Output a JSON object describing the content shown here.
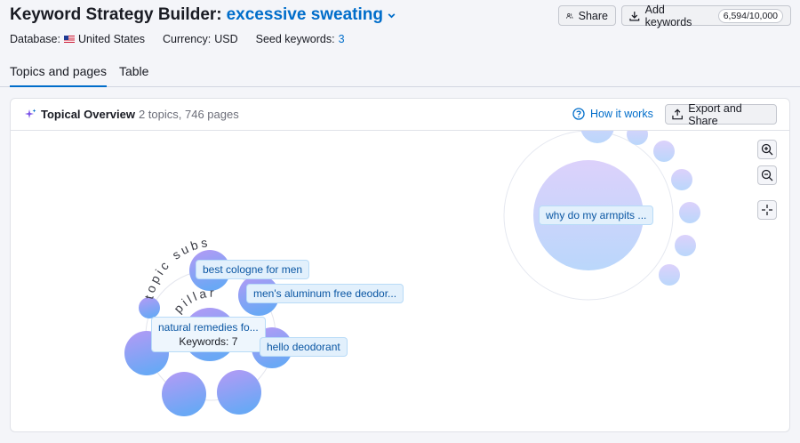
{
  "header": {
    "title_static": "Keyword Strategy Builder:",
    "title_keyword": "excessive sweating",
    "database_label": "Database:",
    "database_value": "United States",
    "currency_label": "Currency:",
    "currency_value": "USD",
    "seed_label": "Seed keywords:",
    "seed_value": "3",
    "share_label": "Share",
    "add_keywords_label": "Add keywords",
    "keywords_counter": "6,594/10,000"
  },
  "tabs": [
    {
      "label": "Topics and pages",
      "active": true
    },
    {
      "label": "Table",
      "active": false
    }
  ],
  "overview": {
    "title": "Topical Overview",
    "subtitle": "2 topics, 746 pages",
    "how_it_works": "How it works",
    "export_label": "Export and Share"
  },
  "graph": {
    "cluster_arc_label_1": "topic subs",
    "cluster_arc_label_2": "pillar",
    "labels": {
      "best_cologne": "best cologne for men",
      "aluminum_free": "men's aluminum free deodor...",
      "natural_remedies": "natural remedies fo...",
      "natural_keywords": "Keywords: 7",
      "hello_deodorant": "hello deodorant",
      "why_armpits": "why do my armpits ..."
    }
  },
  "colors": {
    "accent": "#006dca",
    "bubble_top": "#b59af5",
    "bubble_bottom": "#6aa8f5",
    "bubble_light_top": "#dcd1fb",
    "bubble_light_bottom": "#bad7fb"
  },
  "icons": {
    "sparkle": "sparkle-icon",
    "share": "share-users-icon",
    "download": "download-icon",
    "help": "question-circle-icon",
    "export": "export-icon",
    "zoom_in": "zoom-in-icon",
    "zoom_out": "zoom-out-icon",
    "center": "center-focus-icon",
    "chevron": "chevron-down-icon"
  }
}
